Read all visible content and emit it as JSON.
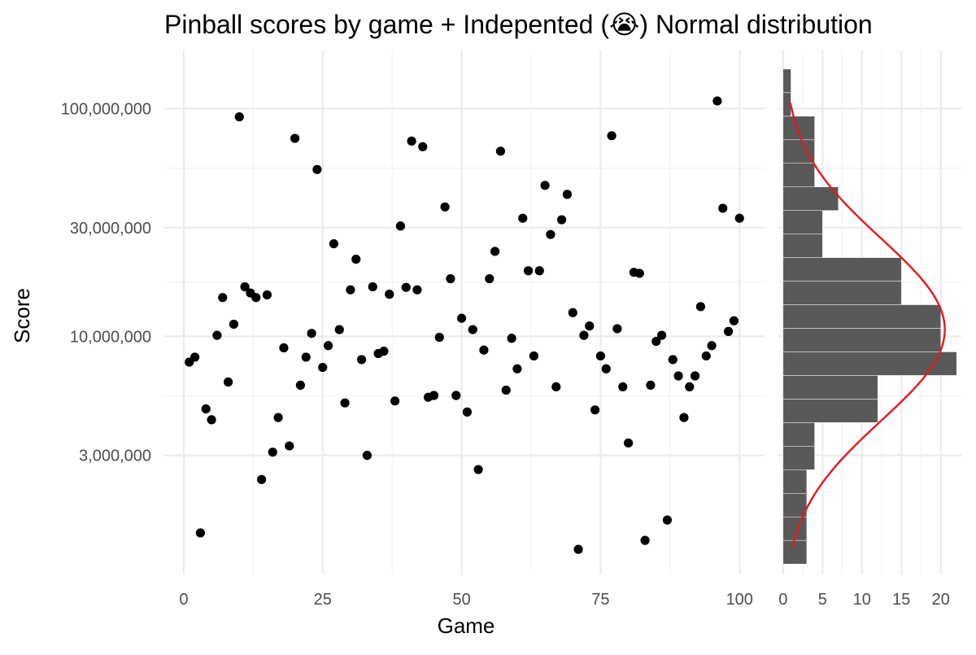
{
  "chart_data": [
    {
      "type": "scatter",
      "title": "Pinball scores by game + Indepented (😭) Normal distribution",
      "xlabel": "Game",
      "ylabel": "Score",
      "y_scale": "log10",
      "xlim": [
        -3.5,
        104.5
      ],
      "ylim": [
        900000,
        180000000
      ],
      "x_ticks": [
        0,
        25,
        50,
        75,
        100
      ],
      "x_tick_labels": [
        "0",
        "25",
        "50",
        "75",
        "100"
      ],
      "y_ticks": [
        3000000,
        10000000,
        30000000,
        100000000
      ],
      "y_tick_labels": [
        "3,000,000",
        "10,000,000",
        "30,000,000",
        "100,000,000"
      ],
      "grid": true,
      "point_color": "#000000",
      "points": [
        {
          "x": 1,
          "y": 7700000
        },
        {
          "x": 2,
          "y": 8100000
        },
        {
          "x": 3,
          "y": 1370000
        },
        {
          "x": 4,
          "y": 4800000
        },
        {
          "x": 5,
          "y": 4300000
        },
        {
          "x": 6,
          "y": 10100000
        },
        {
          "x": 7,
          "y": 14800000
        },
        {
          "x": 8,
          "y": 6300000
        },
        {
          "x": 9,
          "y": 11300000
        },
        {
          "x": 10,
          "y": 92000000
        },
        {
          "x": 11,
          "y": 16500000
        },
        {
          "x": 12,
          "y": 15500000
        },
        {
          "x": 13,
          "y": 14800000
        },
        {
          "x": 14,
          "y": 2350000
        },
        {
          "x": 15,
          "y": 15200000
        },
        {
          "x": 16,
          "y": 3100000
        },
        {
          "x": 17,
          "y": 4400000
        },
        {
          "x": 18,
          "y": 8900000
        },
        {
          "x": 19,
          "y": 3300000
        },
        {
          "x": 20,
          "y": 74000000
        },
        {
          "x": 21,
          "y": 6100000
        },
        {
          "x": 22,
          "y": 8100000
        },
        {
          "x": 23,
          "y": 10300000
        },
        {
          "x": 24,
          "y": 54000000
        },
        {
          "x": 25,
          "y": 7300000
        },
        {
          "x": 26,
          "y": 9100000
        },
        {
          "x": 27,
          "y": 25500000
        },
        {
          "x": 28,
          "y": 10700000
        },
        {
          "x": 29,
          "y": 5100000
        },
        {
          "x": 30,
          "y": 16000000
        },
        {
          "x": 31,
          "y": 21800000
        },
        {
          "x": 32,
          "y": 7900000
        },
        {
          "x": 33,
          "y": 3000000
        },
        {
          "x": 34,
          "y": 16500000
        },
        {
          "x": 35,
          "y": 8400000
        },
        {
          "x": 36,
          "y": 8600000
        },
        {
          "x": 37,
          "y": 15300000
        },
        {
          "x": 38,
          "y": 5200000
        },
        {
          "x": 39,
          "y": 30500000
        },
        {
          "x": 40,
          "y": 16400000
        },
        {
          "x": 41,
          "y": 72000000
        },
        {
          "x": 42,
          "y": 16000000
        },
        {
          "x": 43,
          "y": 68000000
        },
        {
          "x": 44,
          "y": 5400000
        },
        {
          "x": 45,
          "y": 5500000
        },
        {
          "x": 46,
          "y": 9900000
        },
        {
          "x": 47,
          "y": 37000000
        },
        {
          "x": 48,
          "y": 17900000
        },
        {
          "x": 49,
          "y": 5500000
        },
        {
          "x": 50,
          "y": 12000000
        },
        {
          "x": 51,
          "y": 4650000
        },
        {
          "x": 52,
          "y": 10700000
        },
        {
          "x": 53,
          "y": 2600000
        },
        {
          "x": 54,
          "y": 8700000
        },
        {
          "x": 55,
          "y": 17900000
        },
        {
          "x": 56,
          "y": 23600000
        },
        {
          "x": 57,
          "y": 65000000
        },
        {
          "x": 58,
          "y": 5800000
        },
        {
          "x": 59,
          "y": 9800000
        },
        {
          "x": 60,
          "y": 7200000
        },
        {
          "x": 61,
          "y": 33000000
        },
        {
          "x": 62,
          "y": 19400000
        },
        {
          "x": 63,
          "y": 8200000
        },
        {
          "x": 64,
          "y": 19400000
        },
        {
          "x": 65,
          "y": 46000000
        },
        {
          "x": 66,
          "y": 28000000
        },
        {
          "x": 67,
          "y": 6000000
        },
        {
          "x": 68,
          "y": 32500000
        },
        {
          "x": 69,
          "y": 42000000
        },
        {
          "x": 70,
          "y": 12700000
        },
        {
          "x": 71,
          "y": 1160000
        },
        {
          "x": 72,
          "y": 10100000
        },
        {
          "x": 73,
          "y": 11100000
        },
        {
          "x": 74,
          "y": 4750000
        },
        {
          "x": 75,
          "y": 8200000
        },
        {
          "x": 76,
          "y": 7200000
        },
        {
          "x": 77,
          "y": 76000000
        },
        {
          "x": 78,
          "y": 10800000
        },
        {
          "x": 79,
          "y": 6000000
        },
        {
          "x": 80,
          "y": 3400000
        },
        {
          "x": 81,
          "y": 19100000
        },
        {
          "x": 82,
          "y": 18900000
        },
        {
          "x": 83,
          "y": 1270000
        },
        {
          "x": 84,
          "y": 6100000
        },
        {
          "x": 85,
          "y": 9500000
        },
        {
          "x": 86,
          "y": 10100000
        },
        {
          "x": 87,
          "y": 1560000
        },
        {
          "x": 88,
          "y": 7900000
        },
        {
          "x": 89,
          "y": 6700000
        },
        {
          "x": 90,
          "y": 4400000
        },
        {
          "x": 91,
          "y": 6000000
        },
        {
          "x": 92,
          "y": 6700000
        },
        {
          "x": 93,
          "y": 13500000
        },
        {
          "x": 94,
          "y": 8200000
        },
        {
          "x": 95,
          "y": 9100000
        },
        {
          "x": 96,
          "y": 108000000
        },
        {
          "x": 97,
          "y": 36500000
        },
        {
          "x": 98,
          "y": 10500000
        },
        {
          "x": 99,
          "y": 11700000
        },
        {
          "x": 100,
          "y": 33000000
        }
      ]
    },
    {
      "type": "histogram",
      "orientation": "horizontal",
      "y_scale": "log10",
      "x_ticks": [
        0,
        5,
        10,
        15,
        20
      ],
      "x_tick_labels": [
        "0",
        "5",
        "10",
        "15",
        "20"
      ],
      "xlim": [
        -0.6,
        22.6
      ],
      "grid": true,
      "bar_color": "#595959",
      "curve_color": "#e41a1c",
      "bins": [
        {
          "low": 1000000,
          "high": 1270000,
          "count": 3
        },
        {
          "low": 1270000,
          "high": 1611000,
          "count": 3
        },
        {
          "low": 1611000,
          "high": 2045000,
          "count": 3
        },
        {
          "low": 2045000,
          "high": 2596000,
          "count": 3
        },
        {
          "low": 2596000,
          "high": 3294000,
          "count": 4
        },
        {
          "low": 3294000,
          "high": 4180000,
          "count": 4
        },
        {
          "low": 4180000,
          "high": 5305000,
          "count": 12
        },
        {
          "low": 5305000,
          "high": 6732000,
          "count": 12
        },
        {
          "low": 6732000,
          "high": 8544000,
          "count": 22
        },
        {
          "low": 8544000,
          "high": 10840000,
          "count": 20
        },
        {
          "low": 10840000,
          "high": 13760000,
          "count": 20
        },
        {
          "low": 13760000,
          "high": 17460000,
          "count": 15
        },
        {
          "low": 17460000,
          "high": 22160000,
          "count": 15
        },
        {
          "low": 22160000,
          "high": 28120000,
          "count": 5
        },
        {
          "low": 28120000,
          "high": 35690000,
          "count": 5
        },
        {
          "low": 35690000,
          "high": 45290000,
          "count": 7
        },
        {
          "low": 45290000,
          "high": 57480000,
          "count": 4
        },
        {
          "low": 57480000,
          "high": 72940000,
          "count": 4
        },
        {
          "low": 72940000,
          "high": 92570000,
          "count": 4
        },
        {
          "low": 92570000,
          "high": 117500000,
          "count": 1
        },
        {
          "low": 117500000,
          "high": 149100000,
          "count": 1
        }
      ],
      "normal_curve": {
        "mean_score": 10700000,
        "sd_log10": 0.4,
        "peak_count": 20.5,
        "y_from": 1180000,
        "y_to": 106000000
      }
    }
  ]
}
